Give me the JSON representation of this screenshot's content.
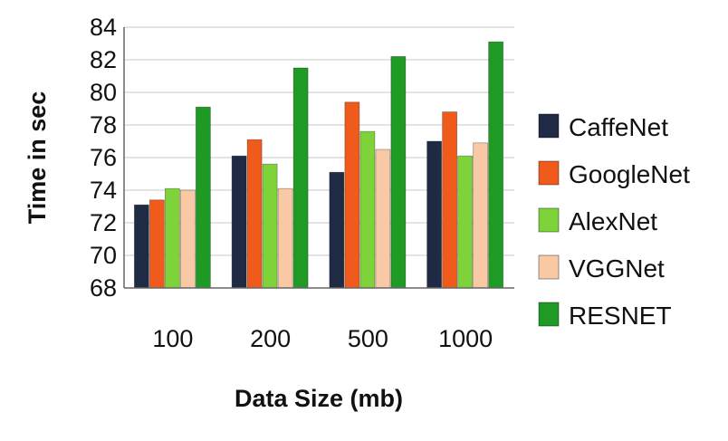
{
  "chart_data": {
    "type": "bar",
    "title": "",
    "xlabel": "Data Size (mb)",
    "ylabel": "Time in sec",
    "categories": [
      "100",
      "200",
      "500",
      "1000"
    ],
    "ylim": [
      68,
      84
    ],
    "yticks": [
      68,
      70,
      72,
      74,
      76,
      78,
      80,
      82,
      84
    ],
    "grid": "horizontal",
    "legend_position": "right",
    "series": [
      {
        "name": "CaffeNet",
        "color": "#1f2a44",
        "values": [
          73.1,
          76.1,
          75.1,
          77.0
        ]
      },
      {
        "name": "GoogleNet",
        "color": "#f05a1a",
        "values": [
          73.4,
          77.1,
          79.4,
          78.8
        ]
      },
      {
        "name": "AlexNet",
        "color": "#7ed23a",
        "values": [
          74.1,
          75.6,
          77.6,
          76.1
        ]
      },
      {
        "name": "VGGNet",
        "color": "#f8c9a4",
        "values": [
          74.0,
          74.1,
          76.5,
          76.9
        ]
      },
      {
        "name": "RESNET",
        "color": "#1f9a25",
        "values": [
          79.1,
          81.5,
          82.2,
          83.1
        ]
      }
    ]
  }
}
